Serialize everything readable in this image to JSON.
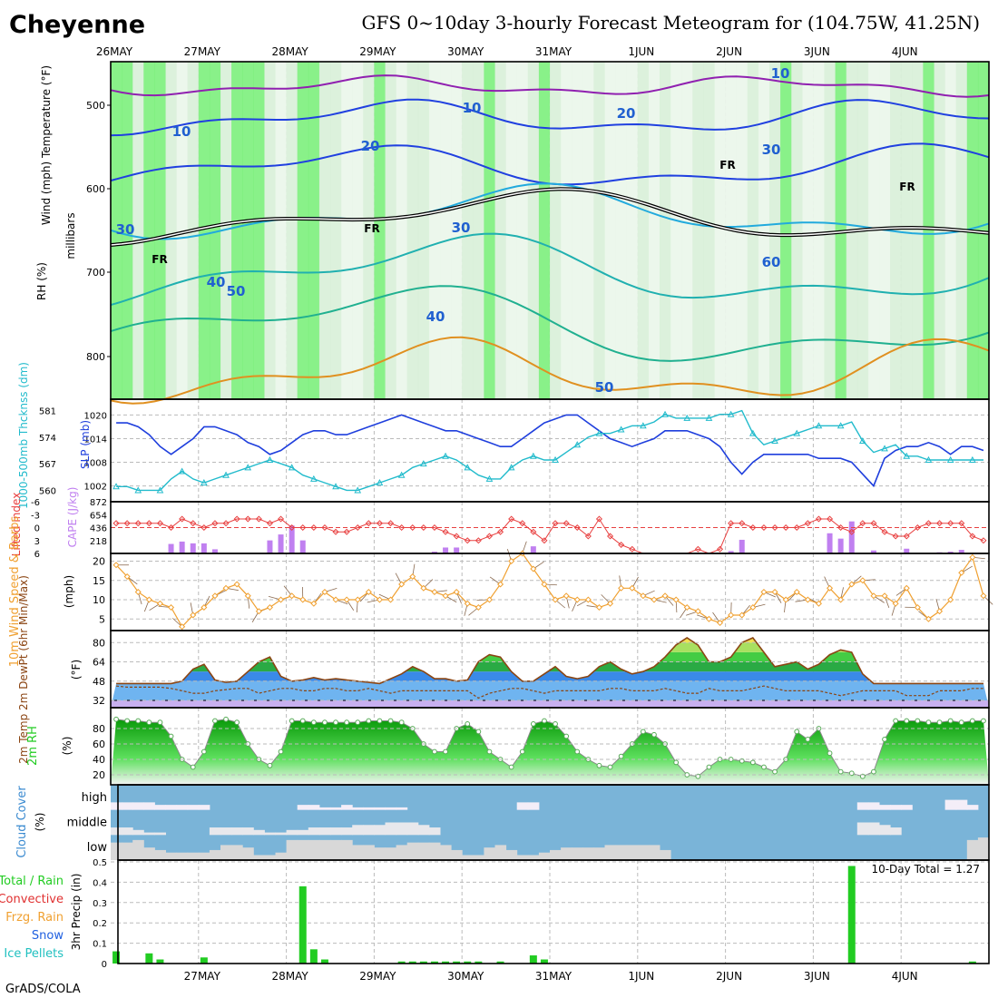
{
  "header": {
    "location": "Cheyenne",
    "title": "GFS 0~10day 3-hourly Forecast Meteogram for (104.75W, 41.25N)",
    "credit": "GrADS/COLA"
  },
  "dates": [
    "26MAY",
    "27MAY",
    "28MAY",
    "29MAY",
    "30MAY",
    "31MAY",
    "1JUN",
    "2JUN",
    "3JUN",
    "4JUN"
  ],
  "colors": {
    "frame": "#000000",
    "grid": "#bbbbbb",
    "rh_green": "#7cf07c",
    "slp": "#1f3fdd",
    "thickness": "#22bbcc",
    "lifted": "#e84040",
    "cape": "#c080f0",
    "wind": "#f0a030",
    "barb": "#8a6a50",
    "temp": "#8b4513",
    "dew": "#8b4513",
    "rh2m": "#22cc22",
    "cloud": "#7ab4d8",
    "precip": "#22cc22"
  },
  "panels": {
    "upper": {
      "ylabel_wind": "Wind (mph)",
      "ylabel_temp": "Temperature (°F)",
      "ylabel_rh": "RH (%)",
      "ylabel_p": "millibars",
      "pressure_ticks": [
        "500",
        "600",
        "700",
        "800"
      ],
      "wind_labels": [
        "10",
        "10",
        "10",
        "20",
        "20",
        "30",
        "30",
        "30",
        "40",
        "40",
        "50",
        "50",
        "60",
        "FR",
        "FR",
        "FR",
        "FR"
      ]
    },
    "slp": {
      "ylabel_left": "1000-500mb Thcknss (dm)",
      "ylabel_right": "SLP (mb)",
      "left_ticks": [
        "581",
        "574",
        "567",
        "560"
      ],
      "right_ticks": [
        "1020",
        "1014",
        "1008",
        "1002"
      ]
    },
    "cape": {
      "ylabel_left": "Lifted Index",
      "ylabel_right": "CAPE (J/kg)",
      "left_ticks": [
        "-6",
        "-3",
        "0",
        "3",
        "6"
      ],
      "right_ticks": [
        "872",
        "654",
        "436",
        "218"
      ]
    },
    "wind10": {
      "ylabel": "10m Wind Speed & Barbs",
      "unit": "(mph)",
      "ticks": [
        "20",
        "15",
        "10",
        "5"
      ]
    },
    "temp": {
      "ylabel": "2m Temp 2m DewPt (6hr Min/Max)",
      "unit": "(°F)",
      "ticks": [
        "80",
        "64",
        "48",
        "32"
      ]
    },
    "rh2m": {
      "ylabel": "2m RH",
      "unit": "(%)",
      "ticks": [
        "80",
        "60",
        "40",
        "20"
      ]
    },
    "cloud": {
      "ylabel": "Cloud Cover",
      "unit": "(%)",
      "levels": [
        "high",
        "middle",
        "low"
      ]
    },
    "precip": {
      "ylabel": "3hr Precip (in)",
      "ticks": [
        "0.5",
        "0.4",
        "0.3",
        "0.2",
        "0.1",
        "0"
      ],
      "total_label": "10-Day Total =  1.27",
      "legend": [
        "Total / Rain",
        "Convective",
        "Frzg. Rain",
        "Snow",
        "Ice Pellets"
      ]
    }
  },
  "chart_data": {
    "type": "line",
    "time_step_hours": 3,
    "n_steps": 80,
    "slp_mb": [
      1018,
      1018,
      1017,
      1015,
      1012,
      1010,
      1012,
      1014,
      1017,
      1017,
      1016,
      1015,
      1013,
      1012,
      1010,
      1011,
      1013,
      1015,
      1016,
      1016,
      1015,
      1015,
      1016,
      1017,
      1018,
      1019,
      1020,
      1019,
      1018,
      1017,
      1016,
      1016,
      1015,
      1014,
      1013,
      1012,
      1012,
      1014,
      1016,
      1018,
      1019,
      1020,
      1020,
      1018,
      1016,
      1014,
      1013,
      1012,
      1013,
      1014,
      1016,
      1016,
      1016,
      1015,
      1014,
      1012,
      1008,
      1005,
      1008,
      1010,
      1010,
      1010,
      1010,
      1010,
      1009,
      1009,
      1009,
      1008,
      1005,
      1002,
      1009,
      1011,
      1012,
      1012,
      1013,
      1012,
      1010,
      1012,
      1012,
      1011
    ],
    "thickness_dm": [
      561,
      561,
      560,
      560,
      560,
      563,
      565,
      563,
      562,
      563,
      564,
      565,
      566,
      567,
      568,
      567,
      566,
      564,
      563,
      562,
      561,
      560,
      560,
      561,
      562,
      563,
      564,
      566,
      567,
      568,
      569,
      568,
      566,
      564,
      563,
      563,
      566,
      568,
      569,
      568,
      568,
      570,
      572,
      574,
      575,
      575,
      576,
      577,
      577,
      578,
      580,
      579,
      579,
      579,
      579,
      580,
      580,
      581,
      575,
      572,
      573,
      574,
      575,
      576,
      577,
      577,
      577,
      578,
      573,
      570,
      571,
      572,
      569,
      569,
      568,
      568,
      568,
      568,
      568,
      568
    ],
    "lifted_index": [
      -1,
      -1,
      -1,
      -1,
      -1,
      0,
      -2,
      -1,
      0,
      -1,
      -1,
      -2,
      -2,
      -2,
      -1,
      -2,
      0,
      0,
      0,
      0,
      1,
      1,
      0,
      -1,
      -1,
      -1,
      0,
      0,
      0,
      0,
      1,
      2,
      3,
      3,
      2,
      1,
      -2,
      -1,
      1,
      3,
      -1,
      -1,
      0,
      2,
      -2,
      2,
      4,
      5,
      6,
      6,
      6,
      6,
      6,
      5,
      6,
      5,
      -1,
      -1,
      0,
      0,
      0,
      0,
      0,
      -1,
      -2,
      -2,
      0,
      1,
      -1,
      -1,
      1,
      2,
      2,
      0,
      -1,
      -1,
      -1,
      -1,
      2,
      3
    ],
    "cape_jkg": [
      0,
      0,
      0,
      0,
      0,
      160,
      200,
      170,
      170,
      70,
      0,
      0,
      0,
      0,
      220,
      320,
      470,
      220,
      0,
      0,
      0,
      0,
      0,
      0,
      0,
      0,
      0,
      0,
      0,
      30,
      100,
      100,
      0,
      0,
      0,
      0,
      0,
      0,
      120,
      0,
      0,
      0,
      0,
      0,
      0,
      0,
      0,
      0,
      0,
      0,
      0,
      0,
      0,
      0,
      0,
      0,
      40,
      230,
      0,
      0,
      0,
      0,
      0,
      0,
      0,
      340,
      250,
      540,
      0,
      50,
      0,
      0,
      80,
      0,
      0,
      20,
      30,
      60,
      0,
      0
    ],
    "wind10_mph": [
      19,
      16,
      12,
      10,
      9,
      8,
      3,
      6,
      8,
      11,
      13,
      14,
      11,
      7,
      8,
      10,
      11,
      10,
      9,
      12,
      10,
      10,
      10,
      12,
      10,
      10,
      14,
      16,
      13,
      12,
      11,
      12,
      9,
      8,
      10,
      14,
      20,
      22,
      18,
      14,
      10,
      11,
      10,
      10,
      8,
      9,
      13,
      13,
      11,
      10,
      11,
      10,
      8,
      7,
      5,
      4,
      6,
      6,
      8,
      12,
      12,
      10,
      12,
      10,
      9,
      13,
      10,
      14,
      15,
      11,
      11,
      9,
      13,
      8,
      5,
      7,
      10,
      17,
      21,
      11
    ],
    "temp_f": [
      46,
      46,
      46,
      46,
      46,
      46,
      48,
      58,
      62,
      49,
      47,
      48,
      56,
      64,
      68,
      52,
      48,
      49,
      51,
      49,
      50,
      49,
      48,
      47,
      46,
      50,
      54,
      60,
      56,
      50,
      50,
      48,
      49,
      64,
      70,
      68,
      56,
      48,
      48,
      54,
      60,
      52,
      50,
      52,
      60,
      64,
      58,
      54,
      56,
      60,
      68,
      78,
      84,
      78,
      64,
      64,
      68,
      80,
      84,
      72,
      60,
      62,
      64,
      58,
      62,
      70,
      74,
      72,
      54,
      46,
      46,
      46,
      46,
      46,
      46,
      46,
      46,
      46,
      46,
      46
    ],
    "dewpt_f": [
      44,
      43,
      43,
      43,
      43,
      42,
      40,
      38,
      38,
      40,
      41,
      42,
      42,
      38,
      40,
      42,
      42,
      40,
      40,
      42,
      42,
      40,
      40,
      42,
      40,
      38,
      40,
      40,
      40,
      40,
      40,
      40,
      40,
      34,
      38,
      40,
      42,
      42,
      40,
      38,
      40,
      40,
      40,
      40,
      40,
      42,
      42,
      40,
      40,
      40,
      42,
      40,
      38,
      38,
      42,
      40,
      40,
      40,
      42,
      44,
      42,
      40,
      40,
      40,
      40,
      38,
      36,
      38,
      40,
      40,
      40,
      40,
      36,
      36,
      36,
      40,
      40,
      40,
      42,
      42
    ],
    "rh2m_pct": [
      92,
      90,
      90,
      88,
      88,
      70,
      40,
      30,
      50,
      90,
      92,
      88,
      60,
      40,
      32,
      50,
      90,
      90,
      88,
      88,
      88,
      88,
      88,
      90,
      90,
      90,
      88,
      80,
      60,
      50,
      50,
      80,
      86,
      76,
      50,
      40,
      30,
      50,
      86,
      90,
      86,
      70,
      50,
      40,
      32,
      30,
      44,
      60,
      76,
      72,
      60,
      36,
      20,
      18,
      30,
      40,
      40,
      38,
      36,
      30,
      24,
      40,
      76,
      66,
      80,
      48,
      24,
      22,
      18,
      24,
      66,
      90,
      90,
      90,
      88,
      88,
      90,
      88,
      90,
      90
    ],
    "precip_in": [
      0.06,
      0.0,
      0.0,
      0.05,
      0.02,
      0.0,
      0.0,
      0.0,
      0.03,
      0.0,
      0.0,
      0.0,
      0.0,
      0.0,
      0.0,
      0.0,
      0.0,
      0.38,
      0.07,
      0.02,
      0.0,
      0.0,
      0.0,
      0.0,
      0.0,
      0.0,
      0.01,
      0.01,
      0.01,
      0.01,
      0.01,
      0.01,
      0.01,
      0.01,
      0.0,
      0.01,
      0.0,
      0.0,
      0.04,
      0.02,
      0.0,
      0.0,
      0.0,
      0.0,
      0.0,
      0.0,
      0.0,
      0.0,
      0.0,
      0.0,
      0.0,
      0.0,
      0.0,
      0.0,
      0.0,
      0.0,
      0.0,
      0.0,
      0.0,
      0.0,
      0.0,
      0.0,
      0.0,
      0.0,
      0.0,
      0.0,
      0.0,
      0.48,
      0.0,
      0.0,
      0.0,
      0.0,
      0.0,
      0.0,
      0.0,
      0.0,
      0.0,
      0.0,
      0.01,
      0.0
    ],
    "cloud_high": [
      30,
      30,
      30,
      30,
      20,
      20,
      20,
      20,
      20,
      0,
      0,
      0,
      0,
      0,
      0,
      0,
      0,
      20,
      20,
      10,
      10,
      20,
      10,
      10,
      10,
      10,
      10,
      0,
      0,
      0,
      0,
      0,
      0,
      0,
      0,
      0,
      0,
      30,
      30,
      0,
      0,
      0,
      0,
      0,
      0,
      0,
      0,
      0,
      0,
      0,
      0,
      0,
      0,
      0,
      0,
      0,
      0,
      0,
      0,
      0,
      0,
      0,
      0,
      0,
      0,
      0,
      0,
      0,
      30,
      30,
      20,
      20,
      20,
      0,
      0,
      0,
      40,
      40,
      20,
      0
    ],
    "cloud_mid": [
      30,
      30,
      20,
      10,
      10,
      0,
      0,
      0,
      0,
      30,
      30,
      30,
      30,
      20,
      10,
      10,
      20,
      20,
      30,
      30,
      30,
      30,
      40,
      40,
      40,
      50,
      50,
      50,
      40,
      30,
      0,
      0,
      0,
      0,
      0,
      0,
      0,
      0,
      0,
      0,
      0,
      0,
      0,
      0,
      0,
      0,
      0,
      0,
      0,
      0,
      0,
      0,
      0,
      0,
      0,
      0,
      0,
      0,
      0,
      0,
      0,
      0,
      0,
      0,
      0,
      0,
      0,
      0,
      50,
      50,
      40,
      30,
      0,
      0,
      0,
      0,
      0,
      0,
      0,
      0
    ],
    "cloud_low": [
      70,
      70,
      80,
      50,
      40,
      30,
      30,
      30,
      30,
      40,
      60,
      60,
      50,
      20,
      20,
      30,
      80,
      80,
      80,
      80,
      80,
      80,
      60,
      60,
      50,
      50,
      60,
      70,
      70,
      70,
      60,
      40,
      20,
      20,
      50,
      60,
      40,
      20,
      20,
      30,
      40,
      50,
      50,
      50,
      50,
      60,
      60,
      60,
      60,
      60,
      40,
      0,
      0,
      0,
      0,
      0,
      0,
      0,
      0,
      0,
      0,
      0,
      0,
      0,
      0,
      0,
      0,
      0,
      0,
      0,
      0,
      0,
      0,
      0,
      0,
      0,
      0,
      0,
      80,
      90
    ],
    "series": [
      {
        "name": "SLP (mb)"
      },
      {
        "name": "1000-500mb Thcknss (dm)"
      },
      {
        "name": "Lifted Index"
      },
      {
        "name": "CAPE (J/kg)"
      }
    ]
  }
}
